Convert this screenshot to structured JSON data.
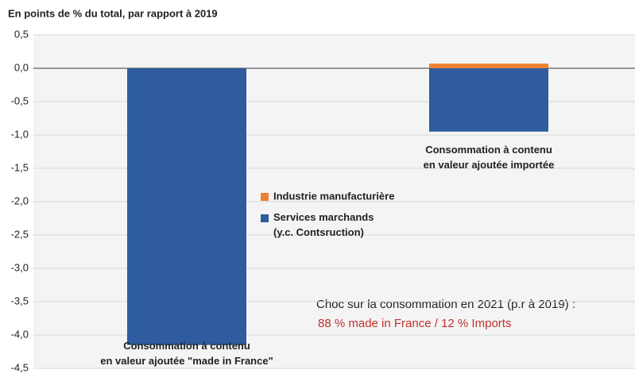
{
  "chart_data": {
    "type": "stacked_bar",
    "title": "En points de % du total, par rapport à 2019",
    "categories": [
      "Consommation à contenu\nen valeur ajoutée \"made in France\"",
      "Consommation à contenu\nen valeur ajoutée importée"
    ],
    "series": [
      {
        "name": "Industrie manufacturière",
        "color": "#ee8033",
        "values": [
          0,
          0.07
        ]
      },
      {
        "name": "Services marchands\n(y.c. Contsruction)",
        "color": "#2e5c9e",
        "values": [
          -4.15,
          -0.95
        ]
      }
    ],
    "ylim": [
      -4.5,
      0.5
    ],
    "yticks": [
      {
        "value": 0.5,
        "label": "0,5"
      },
      {
        "value": 0,
        "label": "0,0"
      },
      {
        "value": -0.5,
        "label": "-0,5"
      },
      {
        "value": -1,
        "label": "-1,0"
      },
      {
        "value": -1.5,
        "label": "-1,5"
      },
      {
        "value": -2,
        "label": "-2,0"
      },
      {
        "value": -2.5,
        "label": "-2,5"
      },
      {
        "value": -3,
        "label": "-3,0"
      },
      {
        "value": -3.5,
        "label": "-3,5"
      },
      {
        "value": -4,
        "label": "-4,0"
      },
      {
        "value": -4.5,
        "label": "-4,5"
      }
    ],
    "grid": true,
    "annotations": [
      "Choc sur la consommation en 2021 (p.r à 2019) :",
      "88 % made in France / 12 % Imports"
    ]
  }
}
